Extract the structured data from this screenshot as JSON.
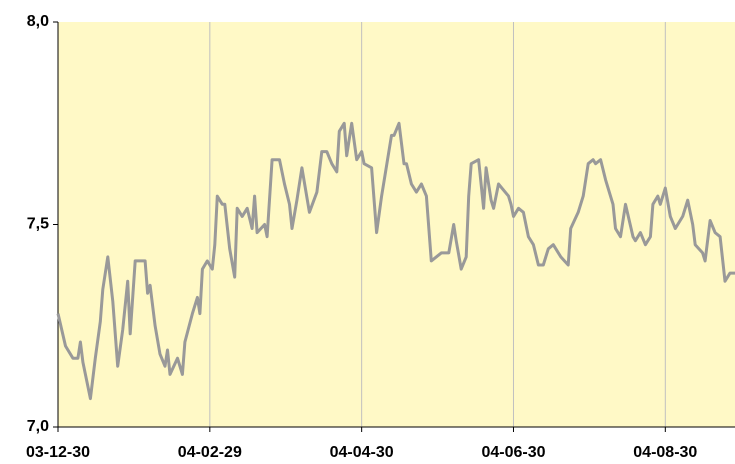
{
  "chart_data": {
    "type": "line",
    "x": [
      "03-12-30",
      "04-01-02",
      "04-01-05",
      "04-01-07",
      "04-01-08",
      "04-01-09",
      "04-01-12",
      "04-01-14",
      "04-01-16",
      "04-01-17",
      "04-01-19",
      "04-01-21",
      "04-01-23",
      "04-01-25",
      "04-01-27",
      "04-01-28",
      "04-01-30",
      "04-02-03",
      "04-02-04",
      "04-02-05",
      "04-02-07",
      "04-02-09",
      "04-02-11",
      "04-02-12",
      "04-02-13",
      "04-02-16",
      "04-02-18",
      "04-02-19",
      "04-02-22",
      "04-02-24",
      "04-02-25",
      "04-02-26",
      "04-02-28",
      "04-03-01",
      "04-03-02",
      "04-03-03",
      "04-03-05",
      "04-03-06",
      "04-03-08",
      "04-03-10",
      "04-03-11",
      "04-03-13",
      "04-03-15",
      "04-03-17",
      "04-03-18",
      "04-03-19",
      "04-03-22",
      "04-03-23",
      "04-03-25",
      "04-03-28",
      "04-03-30",
      "04-04-01",
      "04-04-02",
      "04-04-04",
      "04-04-06",
      "04-04-09",
      "04-04-12",
      "04-04-14",
      "04-04-16",
      "04-04-18",
      "04-04-20",
      "04-04-21",
      "04-04-23",
      "04-04-24",
      "04-04-26",
      "04-04-28",
      "04-04-30",
      "04-05-01",
      "04-05-04",
      "04-05-06",
      "04-05-08",
      "04-05-12",
      "04-05-13",
      "04-05-15",
      "04-05-17",
      "04-05-18",
      "04-05-20",
      "04-05-22",
      "04-05-24",
      "04-05-26",
      "04-05-28",
      "04-06-01",
      "04-06-04",
      "04-06-06",
      "04-06-07",
      "04-06-09",
      "04-06-11",
      "04-06-12",
      "04-06-13",
      "04-06-16",
      "04-06-18",
      "04-06-19",
      "04-06-21",
      "04-06-22",
      "04-06-24",
      "04-06-28",
      "04-06-29",
      "04-06-30",
      "04-07-02",
      "04-07-04",
      "04-07-06",
      "04-07-08",
      "04-07-10",
      "04-07-12",
      "04-07-14",
      "04-07-16",
      "04-07-19",
      "04-07-22",
      "04-07-23",
      "04-07-26",
      "04-07-28",
      "04-07-30",
      "04-08-01",
      "04-08-02",
      "04-08-04",
      "04-08-06",
      "04-08-09",
      "04-08-10",
      "04-08-12",
      "04-08-13",
      "04-08-14",
      "04-08-17",
      "04-08-18",
      "04-08-20",
      "04-08-22",
      "04-08-24",
      "04-08-25",
      "04-08-27",
      "04-08-28",
      "04-08-30",
      "04-09-01",
      "04-09-03",
      "04-09-06",
      "04-09-08",
      "04-09-10",
      "04-09-11",
      "04-09-14",
      "04-09-15",
      "04-09-17",
      "04-09-19",
      "04-09-21",
      "04-09-23",
      "04-09-25",
      "04-09-27"
    ],
    "series": [
      {
        "color": "#999999",
        "values": [
          7.28,
          7.2,
          7.17,
          7.17,
          7.21,
          7.16,
          7.07,
          7.17,
          7.26,
          7.34,
          7.42,
          7.31,
          7.15,
          7.24,
          7.36,
          7.23,
          7.41,
          7.41,
          7.33,
          7.35,
          7.25,
          7.18,
          7.15,
          7.19,
          7.13,
          7.17,
          7.13,
          7.21,
          7.28,
          7.32,
          7.28,
          7.39,
          7.41,
          7.39,
          7.45,
          7.57,
          7.55,
          7.55,
          7.44,
          7.37,
          7.54,
          7.52,
          7.54,
          7.49,
          7.57,
          7.48,
          7.5,
          7.47,
          7.66,
          7.66,
          7.6,
          7.55,
          7.49,
          7.56,
          7.64,
          7.53,
          7.58,
          7.68,
          7.68,
          7.65,
          7.63,
          7.73,
          7.75,
          7.67,
          7.75,
          7.66,
          7.68,
          7.65,
          7.64,
          7.48,
          7.57,
          7.72,
          7.72,
          7.75,
          7.65,
          7.65,
          7.6,
          7.58,
          7.6,
          7.57,
          7.41,
          7.43,
          7.43,
          7.5,
          7.46,
          7.39,
          7.42,
          7.57,
          7.65,
          7.66,
          7.54,
          7.64,
          7.56,
          7.54,
          7.6,
          7.57,
          7.55,
          7.52,
          7.54,
          7.53,
          7.47,
          7.45,
          7.4,
          7.4,
          7.44,
          7.45,
          7.42,
          7.4,
          7.49,
          7.53,
          7.57,
          7.65,
          7.66,
          7.65,
          7.66,
          7.61,
          7.55,
          7.49,
          7.47,
          7.51,
          7.55,
          7.47,
          7.46,
          7.48,
          7.45,
          7.47,
          7.55,
          7.57,
          7.55,
          7.59,
          7.52,
          7.49,
          7.52,
          7.56,
          7.5,
          7.45,
          7.43,
          7.41,
          7.51,
          7.48,
          7.47,
          7.36,
          7.38,
          7.38
        ]
      }
    ],
    "xlim": [
      "03-12-30",
      "04-09-27"
    ],
    "xticks": [
      "03-12-30",
      "04-02-29",
      "04-04-30",
      "04-06-30",
      "04-08-30"
    ],
    "ylim": [
      7,
      8
    ],
    "yticks": [
      {
        "value": 7,
        "label": "7,0"
      },
      {
        "value": 7.5,
        "label": "7,5"
      },
      {
        "value": 8,
        "label": "8,0"
      }
    ],
    "grid": "x",
    "plot_background": "#fff9c6"
  }
}
